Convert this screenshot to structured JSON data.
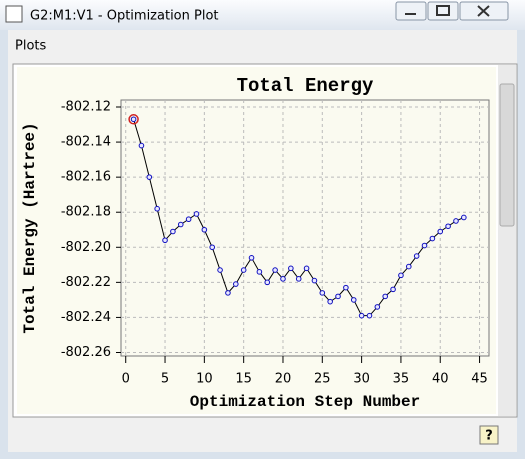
{
  "window": {
    "title": "G2:M1:V1 - Optimization Plot",
    "menu": [
      "Plots"
    ],
    "help_button": "?"
  },
  "chart_data": {
    "type": "line",
    "title": "Total Energy",
    "x_label": "Optimization Step Number",
    "y_label": "Total Energy (Hartree)",
    "x": [
      1,
      2,
      3,
      4,
      5,
      6,
      7,
      8,
      9,
      10,
      11,
      12,
      13,
      14,
      15,
      16,
      17,
      18,
      19,
      20,
      21,
      22,
      23,
      24,
      25,
      26,
      27,
      28,
      29,
      30,
      31,
      32,
      33,
      34,
      35,
      36,
      37,
      38,
      39,
      40,
      41,
      42,
      43
    ],
    "values": [
      -802.127,
      -802.142,
      -802.16,
      -802.178,
      -802.196,
      -802.191,
      -802.187,
      -802.184,
      -802.181,
      -802.19,
      -802.2,
      -802.213,
      -802.226,
      -802.221,
      -802.213,
      -802.206,
      -802.214,
      -802.22,
      -802.213,
      -802.218,
      -802.212,
      -802.218,
      -802.212,
      -802.219,
      -802.226,
      -802.231,
      -802.228,
      -802.223,
      -802.23,
      -802.239,
      -802.239,
      -802.234,
      -802.228,
      -802.224,
      -802.216,
      -802.211,
      -802.205,
      -802.199,
      -802.195,
      -802.191,
      -802.188,
      -802.185,
      -802.183
    ],
    "color": "#1010c0",
    "line_color": "#000000",
    "highlight": {
      "index": 0,
      "color": "#d02020"
    },
    "xlim": [
      -0.6,
      46.2
    ],
    "xticks": [
      0,
      5,
      10,
      15,
      20,
      25,
      30,
      35,
      40,
      45
    ],
    "ylim": [
      -802.262,
      -802.116
    ],
    "yticks": [
      -802.12,
      -802.14,
      -802.16,
      -802.18,
      {
        "value": -802.2,
        "label": "-802.20"
      },
      -802.22,
      -802.24,
      -802.26
    ],
    "grid": true
  }
}
